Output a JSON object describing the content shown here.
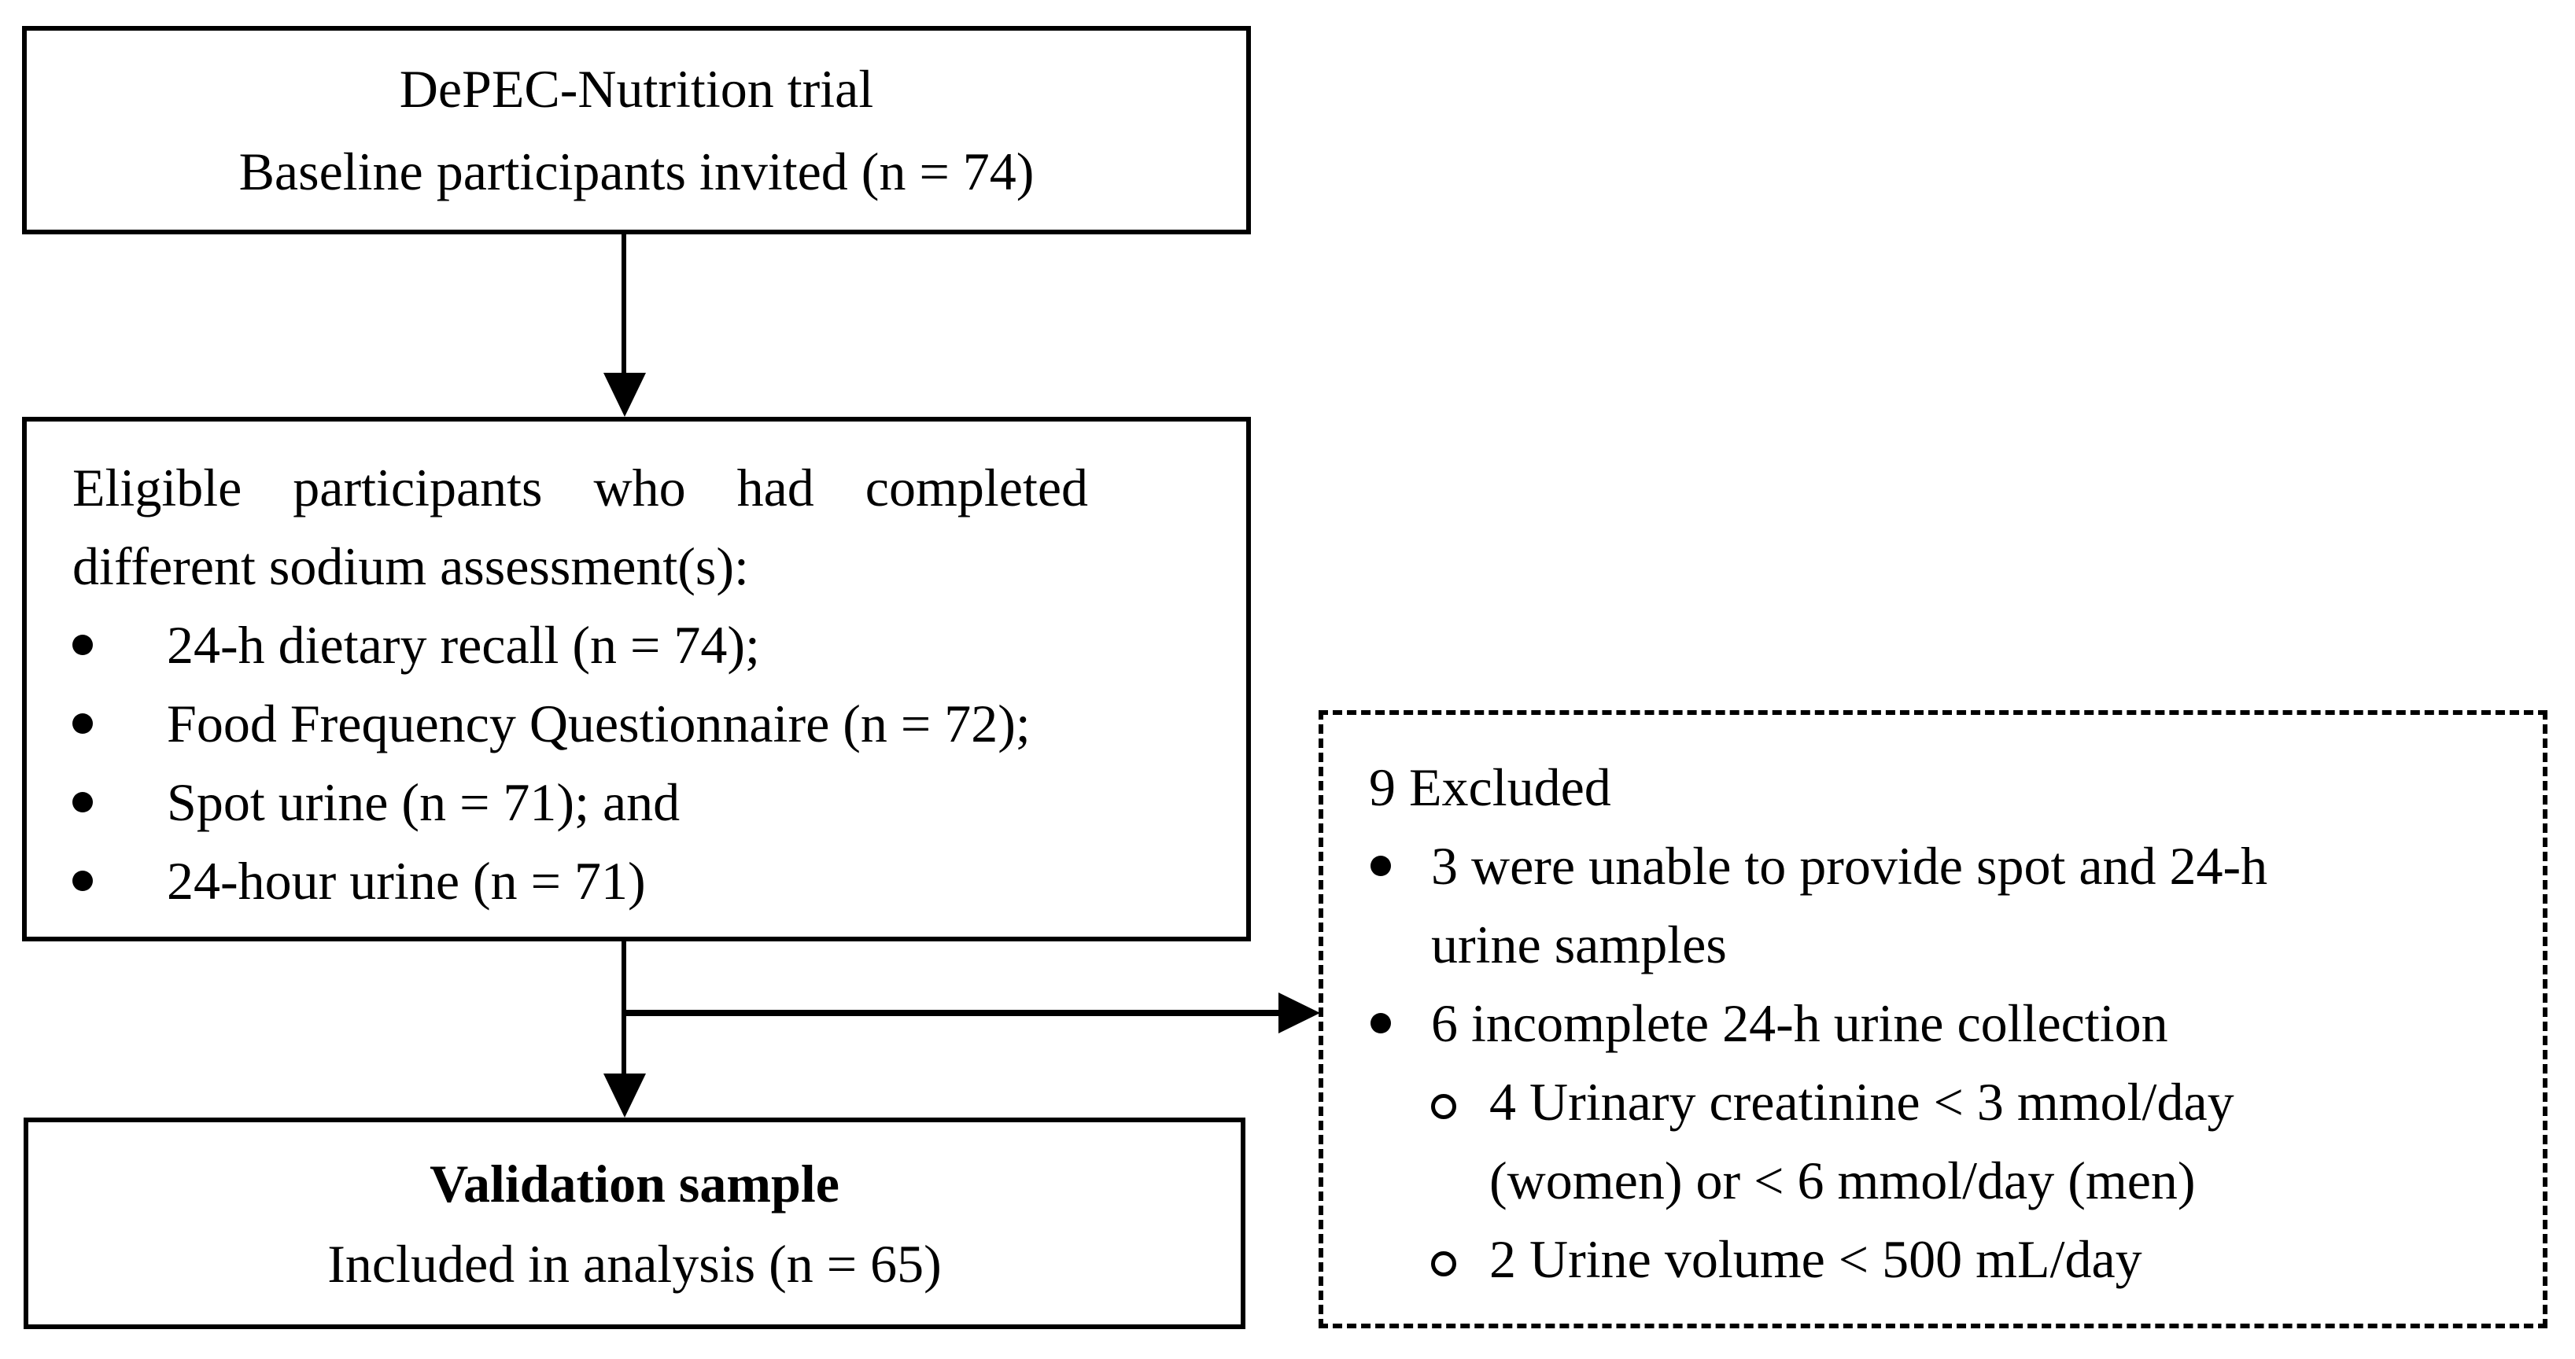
{
  "figure": {
    "type": "participant-flow-diagram"
  },
  "colors": {
    "ink": "#000000",
    "paper": "#ffffff"
  },
  "icons": {
    "bullet": "filled-circle",
    "sub_bullet": "open-circle",
    "connector": "arrow"
  },
  "boxes": {
    "trial": {
      "line1": "DePEC-Nutrition trial",
      "line2": "Baseline participants invited (n = 74)"
    },
    "eligible": {
      "para_line1": "Eligible participants who had completed",
      "para_line2": "different sodium assessment(s):",
      "bullets": [
        "24-h dietary recall (n = 74);",
        "Food Frequency Questionnaire (n = 72);",
        "Spot urine (n = 71); and",
        "24-hour urine (n = 71)"
      ]
    },
    "excluded": {
      "title": "9 Excluded",
      "bullet1_line1": "3 were unable to provide spot and 24-h",
      "bullet1_line2": "urine samples",
      "bullet2": "6 incomplete 24-h urine collection",
      "sub_bullet1_line1": "4 Urinary creatinine < 3 mmol/day",
      "sub_bullet1_line2": "(women) or < 6 mmol/day (men)",
      "sub_bullet2": "2 Urine volume < 500 mL/day"
    },
    "validation": {
      "line1": "Validation sample",
      "line2": "Included in analysis (n = 65)"
    }
  }
}
